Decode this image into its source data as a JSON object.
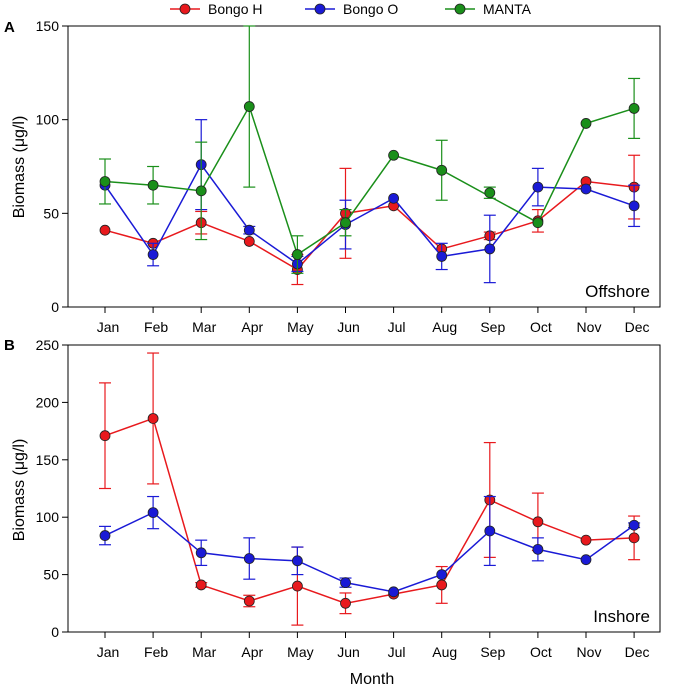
{
  "legend": [
    {
      "name": "Bongo H",
      "color": "#e8191d"
    },
    {
      "name": "Bongo O",
      "color": "#1a1ad6"
    },
    {
      "name": "MANTA",
      "color": "#1a8f1a"
    }
  ],
  "xlabel": "Month",
  "chart_data": [
    {
      "type": "line",
      "panel_letter": "A",
      "annotation": "Offshore",
      "ylabel": "Biomass (μg/l)",
      "ylim": [
        0,
        150
      ],
      "yticks": [
        0,
        50,
        100,
        150
      ],
      "categories": [
        "Jan",
        "Feb",
        "Mar",
        "Apr",
        "May",
        "Jun",
        "Jul",
        "Aug",
        "Sep",
        "Oct",
        "Nov",
        "Dec"
      ],
      "series": [
        {
          "name": "Bongo H",
          "color": "#e8191d",
          "values": [
            41,
            34,
            45,
            35,
            20,
            50,
            54,
            31,
            38,
            46,
            67,
            64
          ],
          "errors": [
            0,
            0,
            6,
            0,
            8,
            24,
            0,
            0,
            2,
            6,
            0,
            17
          ]
        },
        {
          "name": "Bongo O",
          "color": "#1a1ad6",
          "values": [
            65,
            28,
            76,
            41,
            23,
            44,
            58,
            27,
            31,
            64,
            63,
            54
          ],
          "errors": [
            0,
            6,
            24,
            2,
            4,
            13,
            0,
            7,
            18,
            10,
            0,
            11
          ]
        },
        {
          "name": "MANTA",
          "color": "#1a8f1a",
          "values": [
            67,
            65,
            62,
            107,
            28,
            45,
            81,
            73,
            null,
            45,
            98,
            106
          ],
          "errors": [
            12,
            10,
            26,
            43,
            10,
            7,
            0,
            16,
            3,
            0,
            0,
            16
          ],
          "sep_value": 61
        }
      ]
    },
    {
      "type": "line",
      "panel_letter": "B",
      "annotation": "Inshore",
      "ylabel": "Biomass (μg/l)",
      "ylim": [
        0,
        250
      ],
      "yticks": [
        0,
        50,
        100,
        150,
        200,
        250
      ],
      "categories": [
        "Jan",
        "Feb",
        "Mar",
        "Apr",
        "May",
        "Jun",
        "Jul",
        "Aug",
        "Sep",
        "Oct",
        "Nov",
        "Dec"
      ],
      "series": [
        {
          "name": "Bongo H",
          "color": "#e8191d",
          "values": [
            171,
            186,
            41,
            27,
            40,
            25,
            33,
            41,
            115,
            96,
            80,
            82
          ],
          "errors": [
            46,
            57,
            2,
            5,
            34,
            9,
            0,
            16,
            50,
            25,
            0,
            19
          ]
        },
        {
          "name": "Bongo O",
          "color": "#1a1ad6",
          "values": [
            84,
            104,
            69,
            64,
            62,
            43,
            35,
            50,
            88,
            72,
            63,
            93
          ],
          "errors": [
            8,
            14,
            11,
            18,
            12,
            4,
            0,
            0,
            30,
            10,
            0,
            2
          ]
        }
      ]
    }
  ]
}
